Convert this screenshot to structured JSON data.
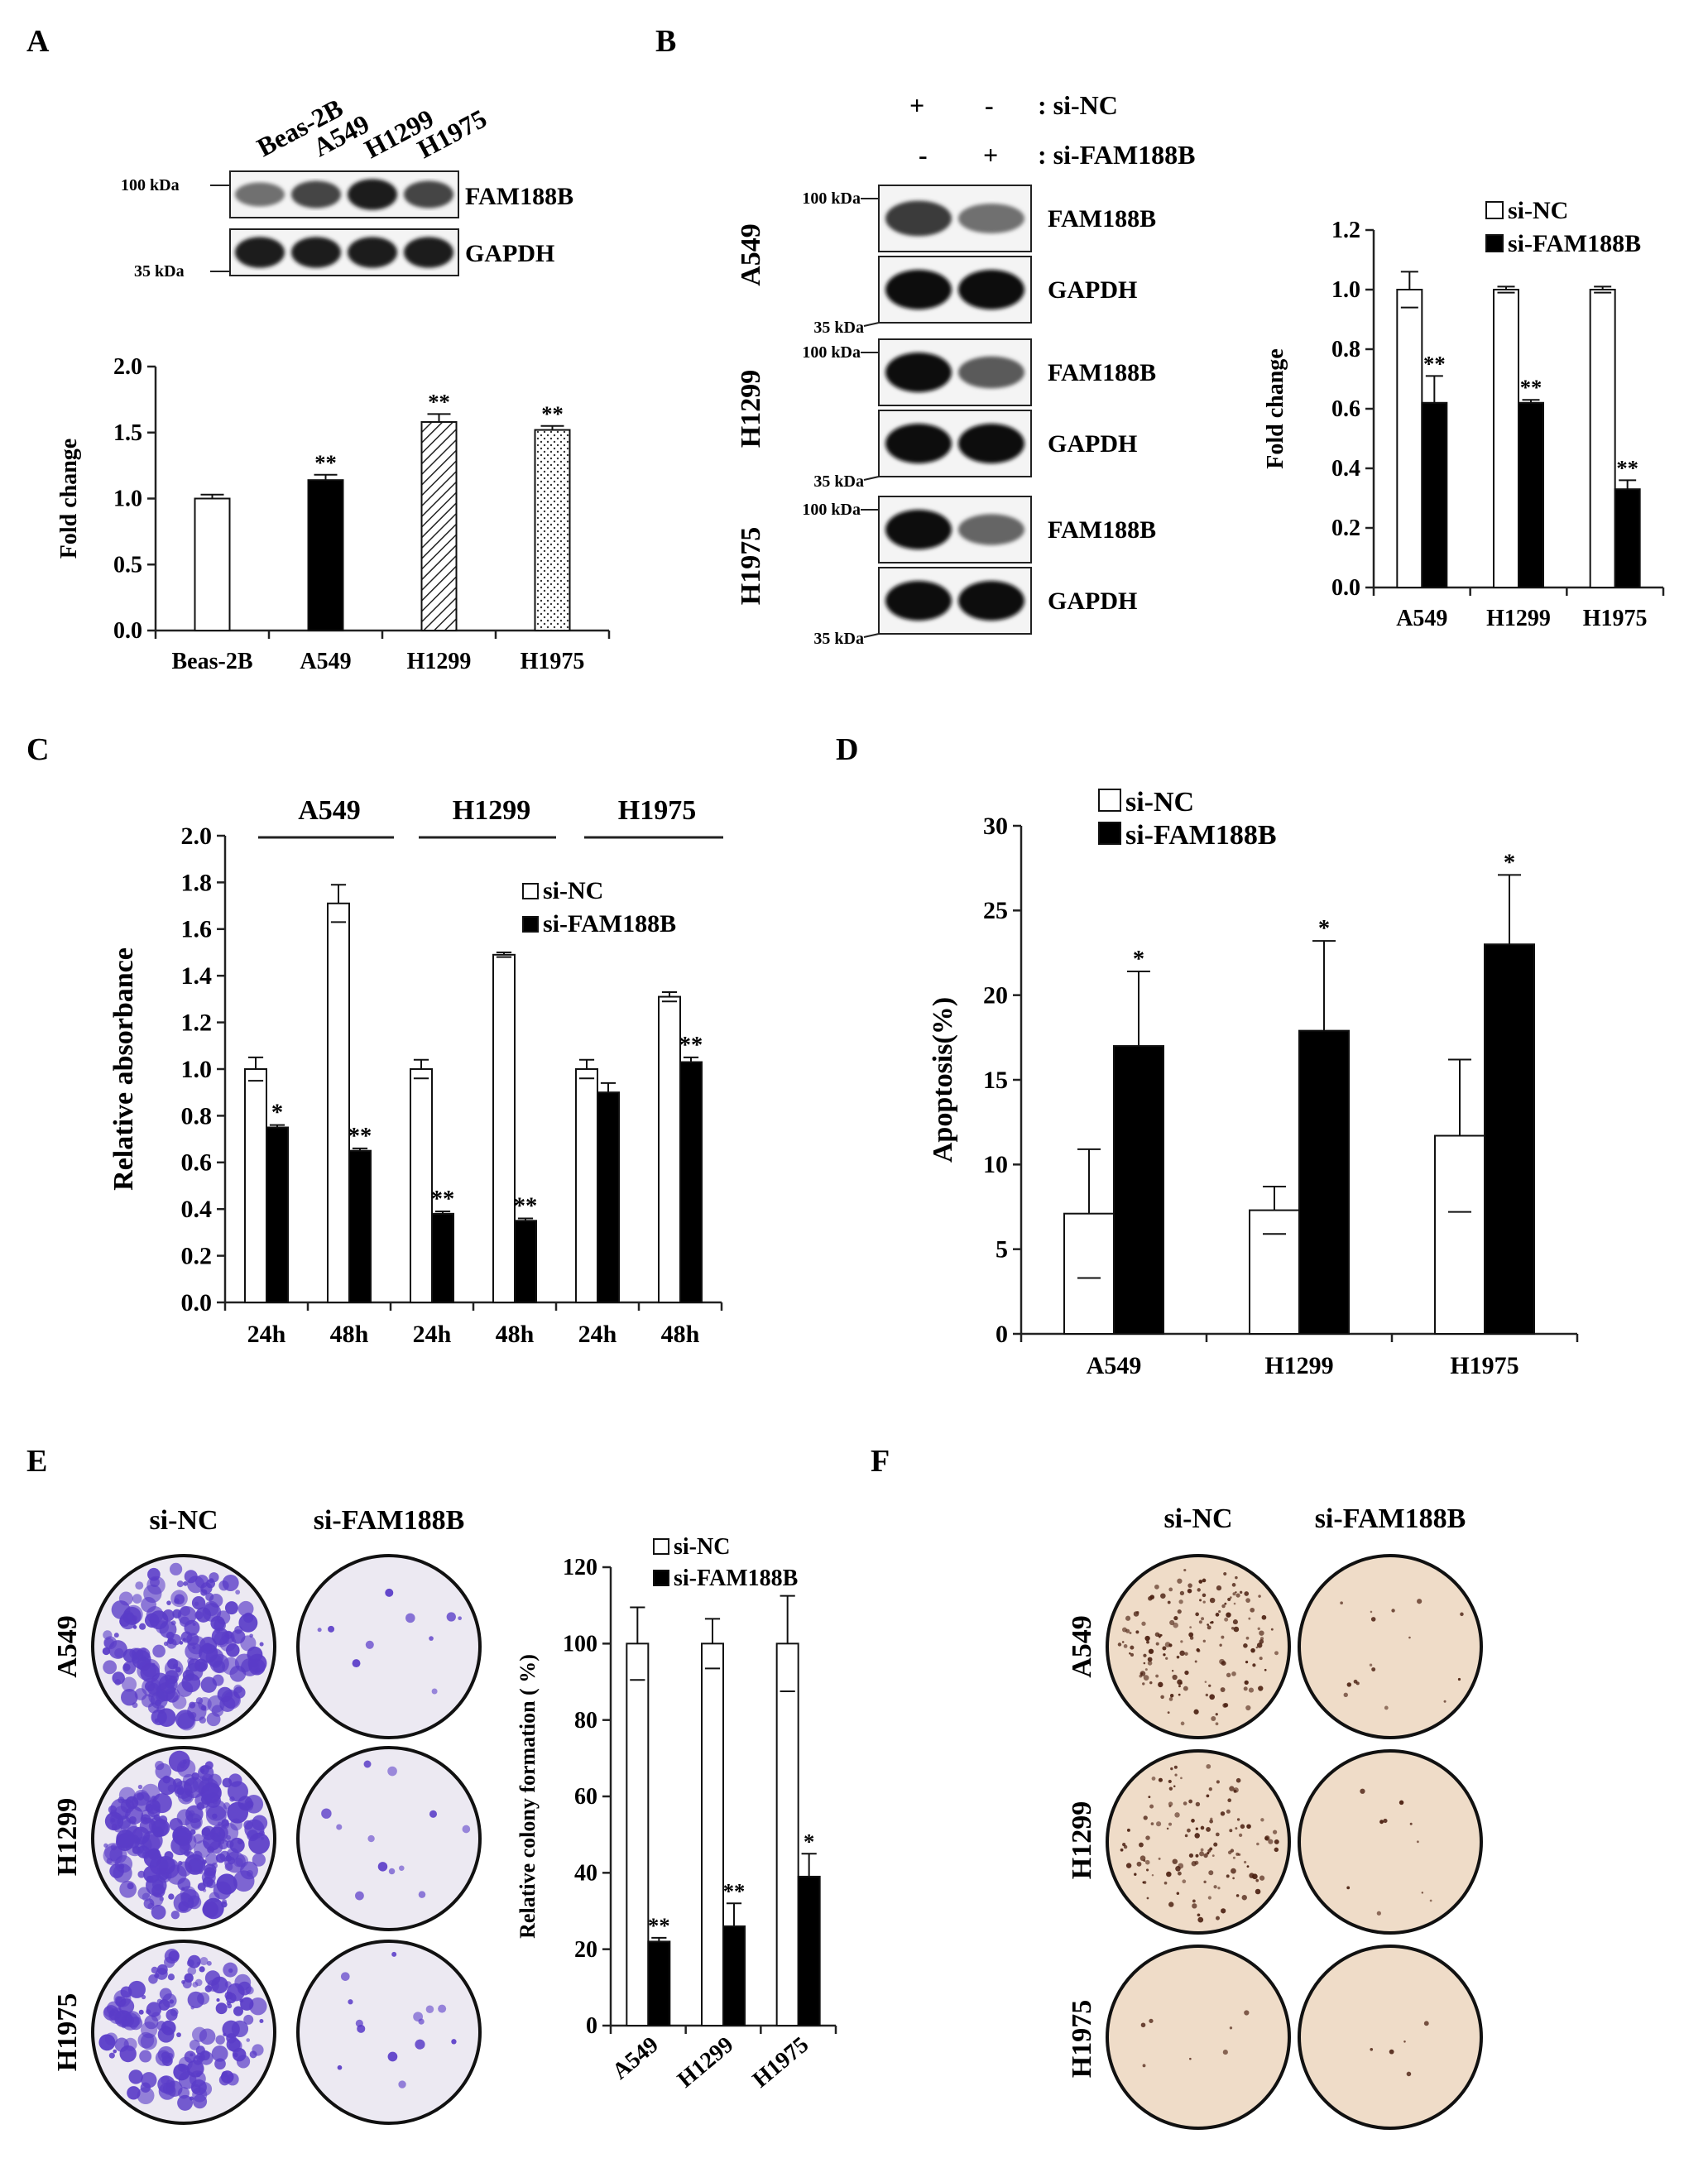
{
  "panels": {
    "A": {
      "letter": "A",
      "blot": {
        "lanes": [
          "Beas-2B",
          "A549",
          "H1299",
          "H1975"
        ],
        "rows": [
          {
            "marker": "100 kDa",
            "protein": "FAM188B",
            "intensity": [
              0.55,
              0.75,
              0.95,
              0.75
            ]
          },
          {
            "marker": "35 kDa",
            "protein": "GAPDH",
            "intensity": [
              0.95,
              0.95,
              0.95,
              0.95
            ]
          }
        ]
      }
    },
    "B": {
      "letter": "B",
      "blot": {
        "conditions": [
          {
            "label": ": si-NC",
            "signs": [
              "+",
              "-"
            ]
          },
          {
            "label": ": si-FAM188B",
            "signs": [
              "-",
              "+"
            ]
          }
        ],
        "groups": [
          {
            "cell": "A549",
            "rows": [
              {
                "marker": "100 kDa",
                "protein": "FAM188B",
                "intensity": [
                  0.8,
                  0.55
                ]
              },
              {
                "marker": "35 kDa",
                "protein": "GAPDH",
                "intensity": [
                  1.0,
                  1.0
                ]
              }
            ]
          },
          {
            "cell": "H1299",
            "rows": [
              {
                "marker": "100 kDa",
                "protein": "FAM188B",
                "intensity": [
                  1.0,
                  0.65
                ]
              },
              {
                "marker": "35 kDa",
                "protein": "GAPDH",
                "intensity": [
                  1.0,
                  1.0
                ]
              }
            ]
          },
          {
            "cell": "H1975",
            "rows": [
              {
                "marker": "100 kDa",
                "protein": "FAM188B",
                "intensity": [
                  1.0,
                  0.6
                ]
              },
              {
                "marker": "35 kDa",
                "protein": "GAPDH",
                "intensity": [
                  1.0,
                  1.0
                ]
              }
            ]
          }
        ]
      }
    },
    "C": {
      "letter": "C",
      "group_labels": [
        "A549",
        "H1299",
        "H1975"
      ]
    },
    "D": {
      "letter": "D"
    },
    "E": {
      "letter": "E",
      "dish_columns": [
        "si-NC",
        "si-FAM188B"
      ],
      "dish_rows": [
        "A549",
        "H1299",
        "H1975"
      ],
      "dish_density": [
        [
          0.85,
          0.03
        ],
        [
          1.0,
          0.04
        ],
        [
          0.7,
          0.05
        ]
      ],
      "dish_color": "#5a3cc8",
      "dish_bg": "#ece9f2"
    },
    "F": {
      "letter": "F",
      "dish_columns": [
        "si-NC",
        "si-FAM188B"
      ],
      "dish_rows": [
        "A549",
        "H1299",
        "H1975"
      ],
      "dish_density": [
        [
          0.7,
          0.06
        ],
        [
          0.55,
          0.03
        ],
        [
          0.02,
          0.01
        ]
      ],
      "dish_color": "#4a1f10",
      "dish_bg": "#efdcc8"
    }
  },
  "chart_data": [
    {
      "id": "A",
      "type": "bar",
      "categories": [
        "Beas-2B",
        "A549",
        "H1299",
        "H1975"
      ],
      "values": [
        1.0,
        1.14,
        1.58,
        1.52
      ],
      "errors": [
        0.03,
        0.04,
        0.06,
        0.03
      ],
      "significance": [
        "",
        "**",
        "**",
        "**"
      ],
      "bar_fills": [
        "white",
        "black",
        "hatch",
        "dots"
      ],
      "ylabel": "Fold change",
      "ylim": [
        0,
        2.0
      ],
      "yticks": [
        "0.0",
        "0.5",
        "1.0",
        "1.5",
        "2.0"
      ]
    },
    {
      "id": "B",
      "type": "bar",
      "categories": [
        "A549",
        "H1299",
        "H1975"
      ],
      "series": [
        {
          "name": "si-NC",
          "values": [
            1.0,
            1.0,
            1.0
          ],
          "errors": [
            0.06,
            0.01,
            0.01
          ],
          "sig": [
            "",
            "",
            ""
          ]
        },
        {
          "name": "si-FAM188B",
          "values": [
            0.62,
            0.62,
            0.33
          ],
          "errors": [
            0.09,
            0.01,
            0.03
          ],
          "sig": [
            "**",
            "**",
            "**"
          ]
        }
      ],
      "ylabel": "Fold change",
      "ylim": [
        0,
        1.2
      ],
      "yticks": [
        "0.0",
        "0.2",
        "0.4",
        "0.6",
        "0.8",
        "1.0",
        "1.2"
      ],
      "legend": "top-right"
    },
    {
      "id": "C",
      "type": "bar",
      "categories": [
        "24h",
        "48h",
        "24h",
        "48h",
        "24h",
        "48h"
      ],
      "series": [
        {
          "name": "si-NC",
          "values": [
            1.0,
            1.71,
            1.0,
            1.49,
            1.0,
            1.31
          ],
          "errors": [
            0.05,
            0.08,
            0.04,
            0.01,
            0.04,
            0.02
          ],
          "sig": [
            "",
            "",
            "",
            "",
            "",
            ""
          ]
        },
        {
          "name": "si-FAM188B",
          "values": [
            0.75,
            0.65,
            0.38,
            0.35,
            0.9,
            1.03
          ],
          "errors": [
            0.01,
            0.01,
            0.01,
            0.01,
            0.04,
            0.02
          ],
          "sig": [
            "*",
            "**",
            "**",
            "**",
            "",
            "**"
          ]
        }
      ],
      "ylabel": "Relative absorbance",
      "ylim": [
        0,
        2.0
      ],
      "yticks": [
        "0.0",
        "0.2",
        "0.4",
        "0.6",
        "0.8",
        "1.0",
        "1.2",
        "1.4",
        "1.6",
        "1.8",
        "2.0"
      ],
      "legend": "top-right"
    },
    {
      "id": "D",
      "type": "bar",
      "categories": [
        "A549",
        "H1299",
        "H1975"
      ],
      "series": [
        {
          "name": "si-NC",
          "values": [
            7.1,
            7.3,
            11.7
          ],
          "errors": [
            3.8,
            1.4,
            4.5
          ],
          "sig": [
            "",
            "",
            ""
          ]
        },
        {
          "name": "si-FAM188B",
          "values": [
            17.0,
            17.9,
            23.0
          ],
          "errors": [
            4.4,
            5.3,
            4.1
          ],
          "sig": [
            "*",
            "*",
            "*"
          ]
        }
      ],
      "ylabel": "Apoptosis(%)",
      "ylim": [
        0,
        30
      ],
      "yticks": [
        "0",
        "5",
        "10",
        "15",
        "20",
        "25",
        "30"
      ],
      "legend": "top-left"
    },
    {
      "id": "E",
      "type": "bar",
      "categories": [
        "A549",
        "H1299",
        "H1975"
      ],
      "series": [
        {
          "name": "si-NC",
          "values": [
            100,
            100,
            100
          ],
          "errors": [
            9.5,
            6.5,
            12.5
          ],
          "sig": [
            "",
            "",
            ""
          ]
        },
        {
          "name": "si-FAM188B",
          "values": [
            22,
            26,
            39
          ],
          "errors": [
            1,
            6,
            6
          ],
          "sig": [
            "**",
            "**",
            "*"
          ]
        }
      ],
      "ylabel": "Relative colony formation ( %)",
      "ylim": [
        0,
        120
      ],
      "yticks": [
        "0",
        "20",
        "40",
        "60",
        "80",
        "100",
        "120"
      ],
      "legend": "top"
    }
  ]
}
